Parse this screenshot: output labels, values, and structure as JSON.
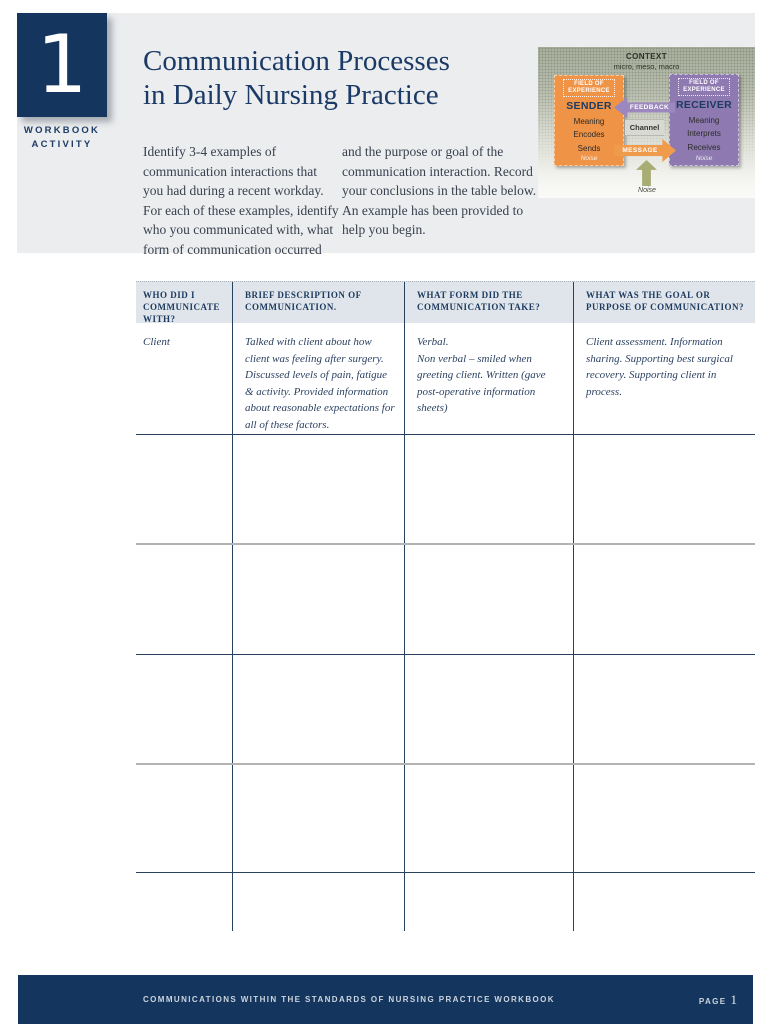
{
  "activity": {
    "number": "1",
    "label": "WORKBOOK\nACTIVITY"
  },
  "title": "Communication Processes\nin Daily Nursing Practice",
  "intro": {
    "col1": "Identify 3-4 examples of\ncommunication interactions that\nyou had during a recent workday.\nFor each of these examples, identify\nwho you communicated with, what\nform of communication occurred",
    "col2": "and the purpose or goal of the\ncommunication interaction. Record\nyour conclusions in the table below.\nAn example has been provided to\nhelp you begin."
  },
  "diagram": {
    "context_title": "CONTEXT",
    "context_subtitle": "micro, meso, macro",
    "sender": {
      "field_label": "FIELD OF\nEXPERIENCE",
      "title": "SENDER",
      "items": [
        "Meaning",
        "Encodes",
        "Sends"
      ],
      "noise_label": "Noise"
    },
    "receiver": {
      "field_label": "FIELD OF\nEXPERIENCE",
      "title": "RECEIVER",
      "items": [
        "Meaning",
        "Interprets",
        "Receives"
      ],
      "noise_label": "Noise"
    },
    "feedback_label": "FEEDBACK",
    "channel_label": "Channel",
    "message_label": "MESSAGE",
    "noise_arrow_label": "Noise",
    "colors": {
      "sender_box": "#ef9347",
      "receiver_box": "#8e7ab1",
      "feedback_arrow": "#9c88be",
      "message_arrow": "#f09a4b",
      "noise_arrow": "#a8ad74"
    }
  },
  "table": {
    "headers": [
      "WHO DID I COMMUNICATE WITH?",
      "BRIEF DESCRIPTION OF COMMUNICATION.",
      "WHAT FORM DID THE COMMUNICATION TAKE?",
      "WHAT WAS THE GOAL OR PURPOSE OF COMMUNICATION?"
    ],
    "example_row": {
      "who": "Client",
      "description": "Talked with client about how client was feeling after surgery. Discussed levels of pain, fatigue & activity. Provided information about reasonable expectations for all of these factors.",
      "form": "Verbal.\nNon verbal – smiled when greeting client. Written (gave post-operative information sheets)",
      "goal": "Client assessment. Information sharing. Supporting best surgical recovery. Supporting client in process."
    },
    "empty_row_count": 5
  },
  "footer": {
    "text": "COMMUNICATIONS WITHIN THE STANDARDS OF NURSING PRACTICE WORKBOOK",
    "page_label": "PAGE",
    "page_number": "1"
  },
  "colors": {
    "accent_navy": "#14365e",
    "banner_gray": "#ebedef",
    "table_header_bg": "#dfe5ea",
    "rule_navy": "#27415f",
    "rule_gray": "#b3b3b3"
  }
}
